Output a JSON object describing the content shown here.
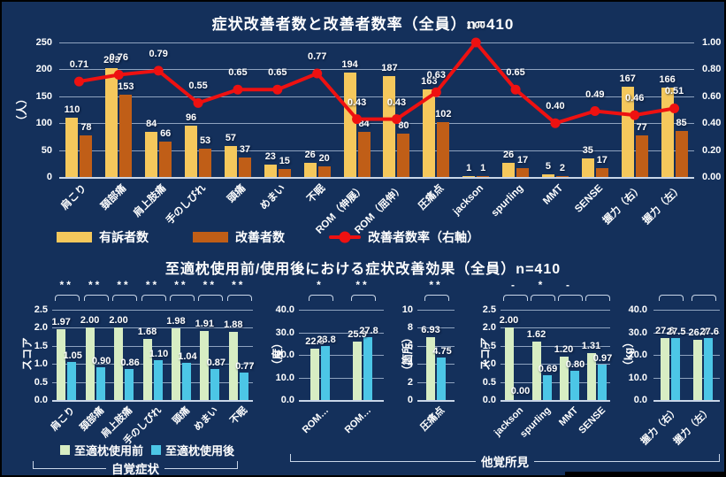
{
  "colors": {
    "background": "#14305B",
    "complaints_bar": "#F5C85C",
    "improved_bar": "#C05E17",
    "rate_line": "#EE1111",
    "before_bar": "#D7EDC3",
    "after_bar": "#4CC6E6",
    "grid_line": "#8FA3BF",
    "axis_line": "#C9D6E8",
    "text": "#FFFFFF"
  },
  "chart_data": [
    {
      "id": "symptom-improvement",
      "type": "bar+line",
      "title": "症状改善者数と改善者数率（全員）n=410",
      "ylabel": "（人）",
      "ylim": [
        0,
        250
      ],
      "yticks": [
        "0",
        "50",
        "100",
        "150",
        "200",
        "250"
      ],
      "y2lim": [
        0,
        1
      ],
      "y2ticks": [
        "0.00",
        "0.20",
        "0.40",
        "0.60",
        "0.80",
        "1.00"
      ],
      "grid": true,
      "legend_position": "bottom-left",
      "categories": [
        "肩こり",
        "頚部痛",
        "肩上肢痛",
        "手のしびれ",
        "頭痛",
        "めまい",
        "不眠",
        "ROM（伸展）",
        "ROM（屈伸）",
        "圧痛点",
        "jackson",
        "spurling",
        "MMT",
        "SENSE",
        "握力（右）",
        "握力（左）"
      ],
      "series": [
        {
          "name": "有訴者数",
          "type": "bar",
          "axis": "left",
          "values": [
            110,
            203,
            84,
            96,
            57,
            23,
            26,
            194,
            187,
            163,
            1,
            26,
            5,
            35,
            167,
            166
          ]
        },
        {
          "name": "改善者数",
          "type": "bar",
          "axis": "left",
          "values": [
            78,
            153,
            66,
            53,
            37,
            15,
            20,
            84,
            80,
            102,
            1,
            17,
            2,
            17,
            77,
            85
          ]
        },
        {
          "name": "改善者数率（右軸）",
          "type": "line",
          "axis": "right",
          "values": [
            0.71,
            0.76,
            0.79,
            0.55,
            0.65,
            0.65,
            0.77,
            0.43,
            0.43,
            0.63,
            1.0,
            0.65,
            0.4,
            0.49,
            0.46,
            0.51
          ],
          "labels": [
            "0.71",
            "0.76",
            "0.79",
            "0.55",
            "0.65",
            "0.65",
            "0.77",
            "0.43",
            "0.43",
            "0.63",
            "1.00",
            "0.65",
            "0.40",
            "0.49",
            "0.46",
            "0.51"
          ]
        }
      ]
    },
    {
      "id": "pillow-effect",
      "type": "grouped-bar-panels",
      "title": "至適枕使用前/使用後における症状改善効果（全員）n=410",
      "series_names": [
        "至適枕使用前",
        "至適枕使用後"
      ],
      "groups": [
        {
          "label": "自覚症状"
        },
        {
          "label": "他覚所見"
        }
      ],
      "panels": [
        {
          "ylabel": "スコア",
          "ylim": [
            0,
            2.5
          ],
          "yticks": [
            "0.0",
            "0.5",
            "1.0",
            "1.5",
            "2.0",
            "2.5"
          ],
          "categories": [
            "肩こり",
            "頚部痛",
            "肩上肢痛",
            "手のしびれ",
            "頭痛",
            "めまい",
            "不眠"
          ],
          "before": [
            1.97,
            2.0,
            2.0,
            1.68,
            1.98,
            1.91,
            1.88
          ],
          "after": [
            1.05,
            0.9,
            0.86,
            1.1,
            1.04,
            0.87,
            0.77
          ],
          "before_labels": [
            "1.97",
            "2.00",
            "2.00",
            "1.68",
            "1.98",
            "1.91",
            "1.88"
          ],
          "after_labels": [
            "1.05",
            "0.90",
            "0.86",
            "1.10",
            "1.04",
            "0.87",
            "0.77"
          ],
          "marks": [
            "**",
            "**",
            "**",
            "**",
            "**",
            "**",
            "**"
          ]
        },
        {
          "ylabel": "（度）",
          "ylim": [
            0,
            40
          ],
          "yticks": [
            "0.0",
            "10.0",
            "20.0",
            "30.0",
            "40.0"
          ],
          "categories": [
            "ROM…",
            "ROM…"
          ],
          "before": [
            22.8,
            25.9
          ],
          "after": [
            23.8,
            27.8
          ],
          "before_labels": [
            "22.8",
            "25.9"
          ],
          "after_labels": [
            "23.8",
            "27.8"
          ],
          "marks": [
            "*",
            "**"
          ]
        },
        {
          "ylabel": "（箇所）",
          "ylim": [
            0,
            10
          ],
          "yticks": [
            "0",
            "2",
            "4",
            "6",
            "8",
            "10"
          ],
          "categories": [
            "圧痛点"
          ],
          "before": [
            6.93
          ],
          "after": [
            4.75
          ],
          "before_labels": [
            "6.93"
          ],
          "after_labels": [
            "4.75"
          ],
          "marks": [
            "**"
          ]
        },
        {
          "ylabel": "スコア",
          "ylim": [
            0,
            2.5
          ],
          "yticks": [
            "0.0",
            "0.5",
            "1.0",
            "1.5",
            "2.0",
            "2.5"
          ],
          "categories": [
            "jackson",
            "spurling",
            "MMT",
            "SENSE"
          ],
          "before": [
            2.0,
            1.62,
            1.2,
            1.31
          ],
          "after": [
            0.0,
            0.69,
            0.8,
            0.97
          ],
          "before_labels": [
            "2.00",
            "1.62",
            "1.20",
            "1.31"
          ],
          "after_labels": [
            "0.00",
            "0.69",
            "0.80",
            "0.97"
          ],
          "marks": [
            "-",
            "*",
            "-",
            ""
          ]
        },
        {
          "ylabel": "（kg）",
          "ylim": [
            0,
            40
          ],
          "yticks": [
            "0.0",
            "10.0",
            "20.0",
            "30.0",
            "40.0"
          ],
          "categories": [
            "握力（右）",
            "握力（左）"
          ],
          "before": [
            27.6,
            26.7
          ],
          "after": [
            27.5,
            27.6
          ],
          "before_labels": [
            "27.6",
            "26.7"
          ],
          "after_labels": [
            "27.5",
            "27.6"
          ],
          "marks": [
            "",
            ""
          ]
        }
      ]
    }
  ]
}
